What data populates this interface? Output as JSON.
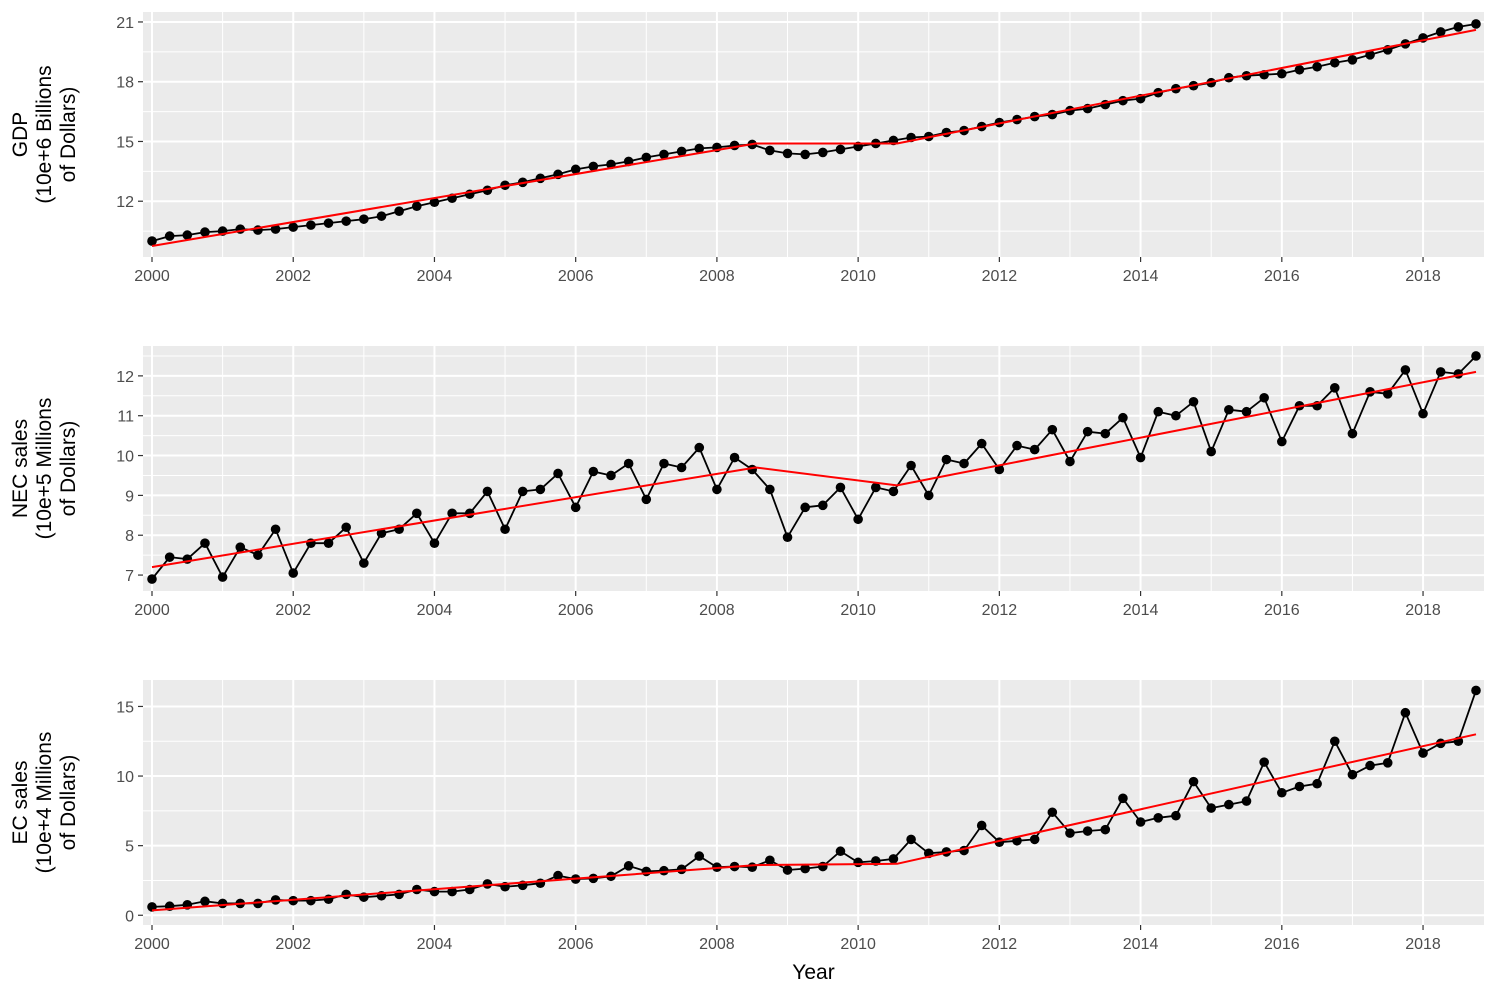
{
  "chart_data": [
    {
      "type": "line",
      "ylabel_lines": [
        "GDP",
        "(10e+6 Billions",
        "of Dollars)"
      ],
      "xlabel": "",
      "xlim": [
        2000,
        2018.75
      ],
      "ylim": [
        9.2,
        21.5
      ],
      "x_ticks": [
        2000,
        2002,
        2004,
        2006,
        2008,
        2010,
        2012,
        2014,
        2016,
        2018
      ],
      "y_ticks": [
        12,
        15,
        18,
        21
      ],
      "grid": true,
      "series": [
        {
          "style": "points-line",
          "color": "#000000",
          "x": [
            2000.0,
            2000.25,
            2000.5,
            2000.75,
            2001.0,
            2001.25,
            2001.5,
            2001.75,
            2002.0,
            2002.25,
            2002.5,
            2002.75,
            2003.0,
            2003.25,
            2003.5,
            2003.75,
            2004.0,
            2004.25,
            2004.5,
            2004.75,
            2005.0,
            2005.25,
            2005.5,
            2005.75,
            2006.0,
            2006.25,
            2006.5,
            2006.75,
            2007.0,
            2007.25,
            2007.5,
            2007.75,
            2008.0,
            2008.25,
            2008.5,
            2008.75,
            2009.0,
            2009.25,
            2009.5,
            2009.75,
            2010.0,
            2010.25,
            2010.5,
            2010.75,
            2011.0,
            2011.25,
            2011.5,
            2011.75,
            2012.0,
            2012.25,
            2012.5,
            2012.75,
            2013.0,
            2013.25,
            2013.5,
            2013.75,
            2014.0,
            2014.25,
            2014.5,
            2014.75,
            2015.0,
            2015.25,
            2015.5,
            2015.75,
            2016.0,
            2016.25,
            2016.5,
            2016.75,
            2017.0,
            2017.25,
            2017.5,
            2017.75,
            2018.0,
            2018.25,
            2018.5,
            2018.75
          ],
          "y": [
            10.0,
            10.25,
            10.3,
            10.45,
            10.5,
            10.6,
            10.55,
            10.6,
            10.7,
            10.8,
            10.9,
            11.0,
            11.1,
            11.25,
            11.5,
            11.75,
            11.95,
            12.15,
            12.35,
            12.55,
            12.8,
            12.95,
            13.15,
            13.35,
            13.6,
            13.75,
            13.85,
            14.0,
            14.2,
            14.35,
            14.5,
            14.65,
            14.7,
            14.8,
            14.85,
            14.55,
            14.4,
            14.35,
            14.45,
            14.6,
            14.75,
            14.9,
            15.05,
            15.2,
            15.25,
            15.45,
            15.55,
            15.75,
            15.95,
            16.1,
            16.25,
            16.35,
            16.55,
            16.65,
            16.85,
            17.05,
            17.15,
            17.45,
            17.65,
            17.8,
            17.95,
            18.2,
            18.3,
            18.35,
            18.4,
            18.6,
            18.75,
            18.95,
            19.1,
            19.35,
            19.6,
            19.9,
            20.2,
            20.5,
            20.75,
            20.9
          ]
        },
        {
          "style": "line",
          "color": "#ff0000",
          "x": [
            2000.0,
            2008.55,
            2010.55,
            2018.75
          ],
          "y": [
            9.75,
            14.9,
            14.9,
            20.6
          ]
        }
      ]
    },
    {
      "type": "line",
      "ylabel_lines": [
        "NEC sales",
        "(10e+5 Millions",
        "of Dollars)"
      ],
      "xlabel": "",
      "xlim": [
        2000,
        2018.75
      ],
      "ylim": [
        6.6,
        12.75
      ],
      "x_ticks": [
        2000,
        2002,
        2004,
        2006,
        2008,
        2010,
        2012,
        2014,
        2016,
        2018
      ],
      "y_ticks": [
        7,
        8,
        9,
        10,
        11,
        12
      ],
      "grid": true,
      "series": [
        {
          "style": "points-line",
          "color": "#000000",
          "x": [
            2000.0,
            2000.25,
            2000.5,
            2000.75,
            2001.0,
            2001.25,
            2001.5,
            2001.75,
            2002.0,
            2002.25,
            2002.5,
            2002.75,
            2003.0,
            2003.25,
            2003.5,
            2003.75,
            2004.0,
            2004.25,
            2004.5,
            2004.75,
            2005.0,
            2005.25,
            2005.5,
            2005.75,
            2006.0,
            2006.25,
            2006.5,
            2006.75,
            2007.0,
            2007.25,
            2007.5,
            2007.75,
            2008.0,
            2008.25,
            2008.5,
            2008.75,
            2009.0,
            2009.25,
            2009.5,
            2009.75,
            2010.0,
            2010.25,
            2010.5,
            2010.75,
            2011.0,
            2011.25,
            2011.5,
            2011.75,
            2012.0,
            2012.25,
            2012.5,
            2012.75,
            2013.0,
            2013.25,
            2013.5,
            2013.75,
            2014.0,
            2014.25,
            2014.5,
            2014.75,
            2015.0,
            2015.25,
            2015.5,
            2015.75,
            2016.0,
            2016.25,
            2016.5,
            2016.75,
            2017.0,
            2017.25,
            2017.5,
            2017.75,
            2018.0,
            2018.25,
            2018.5,
            2018.75
          ],
          "y": [
            6.9,
            7.45,
            7.4,
            7.8,
            6.95,
            7.7,
            7.5,
            8.15,
            7.05,
            7.8,
            7.8,
            8.2,
            7.3,
            8.05,
            8.15,
            8.55,
            7.8,
            8.55,
            8.55,
            9.1,
            8.15,
            9.1,
            9.15,
            9.55,
            8.7,
            9.6,
            9.5,
            9.8,
            8.9,
            9.8,
            9.7,
            10.2,
            9.15,
            9.95,
            9.65,
            9.15,
            7.95,
            8.7,
            8.75,
            9.2,
            8.4,
            9.2,
            9.1,
            9.75,
            9.0,
            9.9,
            9.8,
            10.3,
            9.65,
            10.25,
            10.15,
            10.65,
            9.85,
            10.6,
            10.55,
            10.95,
            9.95,
            11.1,
            11.0,
            11.35,
            10.1,
            11.15,
            11.1,
            11.45,
            10.35,
            11.25,
            11.25,
            11.7,
            10.55,
            11.6,
            11.55,
            12.15,
            11.05,
            12.1,
            12.05,
            12.5
          ]
        },
        {
          "style": "line",
          "color": "#ff0000",
          "x": [
            2000.0,
            2008.55,
            2010.55,
            2018.75
          ],
          "y": [
            7.2,
            9.7,
            9.25,
            12.1
          ]
        }
      ]
    },
    {
      "type": "line",
      "ylabel_lines": [
        "EC sales",
        "(10e+4 Millions",
        "of Dollars)"
      ],
      "xlabel": "Year",
      "xlim": [
        2000,
        2018.75
      ],
      "ylim": [
        -0.7,
        16.9
      ],
      "x_ticks": [
        2000,
        2002,
        2004,
        2006,
        2008,
        2010,
        2012,
        2014,
        2016,
        2018
      ],
      "y_ticks": [
        0,
        5,
        10,
        15
      ],
      "grid": true,
      "series": [
        {
          "style": "points-line",
          "color": "#000000",
          "x": [
            2000.0,
            2000.25,
            2000.5,
            2000.75,
            2001.0,
            2001.25,
            2001.5,
            2001.75,
            2002.0,
            2002.25,
            2002.5,
            2002.75,
            2003.0,
            2003.25,
            2003.5,
            2003.75,
            2004.0,
            2004.25,
            2004.5,
            2004.75,
            2005.0,
            2005.25,
            2005.5,
            2005.75,
            2006.0,
            2006.25,
            2006.5,
            2006.75,
            2007.0,
            2007.25,
            2007.5,
            2007.75,
            2008.0,
            2008.25,
            2008.5,
            2008.75,
            2009.0,
            2009.25,
            2009.5,
            2009.75,
            2010.0,
            2010.25,
            2010.5,
            2010.75,
            2011.0,
            2011.25,
            2011.5,
            2011.75,
            2012.0,
            2012.25,
            2012.5,
            2012.75,
            2013.0,
            2013.25,
            2013.5,
            2013.75,
            2014.0,
            2014.25,
            2014.5,
            2014.75,
            2015.0,
            2015.25,
            2015.5,
            2015.75,
            2016.0,
            2016.25,
            2016.5,
            2016.75,
            2017.0,
            2017.25,
            2017.5,
            2017.75,
            2018.0,
            2018.25,
            2018.5,
            2018.75
          ],
          "y": [
            0.6,
            0.65,
            0.75,
            1.0,
            0.85,
            0.85,
            0.85,
            1.1,
            1.05,
            1.05,
            1.15,
            1.5,
            1.3,
            1.4,
            1.5,
            1.85,
            1.7,
            1.7,
            1.85,
            2.25,
            2.05,
            2.15,
            2.3,
            2.85,
            2.6,
            2.65,
            2.8,
            3.55,
            3.15,
            3.2,
            3.3,
            4.25,
            3.45,
            3.5,
            3.45,
            3.95,
            3.25,
            3.35,
            3.5,
            4.6,
            3.8,
            3.9,
            4.05,
            5.45,
            4.45,
            4.55,
            4.65,
            6.45,
            5.25,
            5.35,
            5.45,
            7.4,
            5.9,
            6.05,
            6.15,
            8.4,
            6.7,
            7.0,
            7.15,
            9.6,
            7.7,
            7.95,
            8.2,
            11.0,
            8.8,
            9.25,
            9.45,
            12.5,
            10.1,
            10.75,
            10.95,
            14.55,
            11.65,
            12.35,
            12.5,
            16.15
          ]
        },
        {
          "style": "line",
          "color": "#ff0000",
          "x": [
            2000.0,
            2008.55,
            2010.55,
            2018.75
          ],
          "y": [
            0.35,
            3.6,
            3.7,
            13.0
          ]
        }
      ]
    }
  ]
}
